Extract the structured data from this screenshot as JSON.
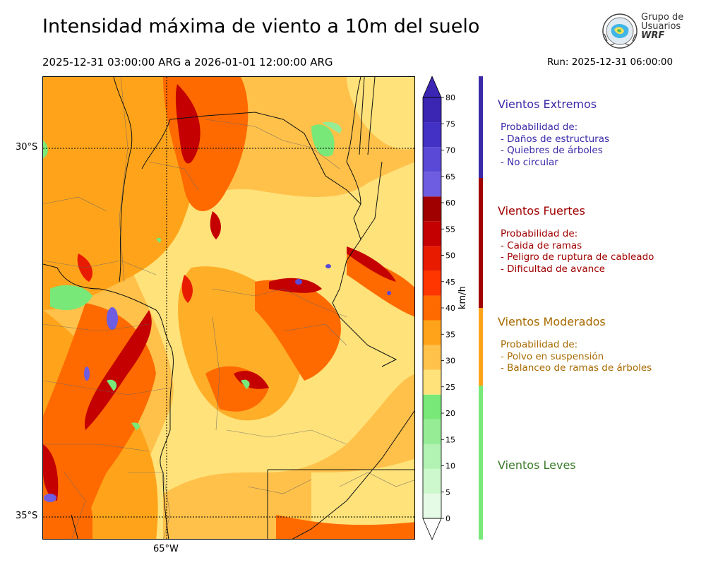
{
  "header": {
    "title": "Intensidad máxima de viento a 10m del suelo",
    "period": "2025-12-31 03:00:00 ARG  a  2026-01-01 12:00:00 ARG",
    "run": "Run: 2025-12-31 06:00:00"
  },
  "logo": {
    "line1": "Grupo de",
    "line2": "Usuarios",
    "line3": "WRF"
  },
  "map": {
    "lat_labels": [
      "30°S",
      "35°S"
    ],
    "lon_labels": [
      "65°W"
    ]
  },
  "colorbar": {
    "unit": "km/h",
    "ticks": [
      "0",
      "5",
      "10",
      "15",
      "20",
      "25",
      "30",
      "35",
      "40",
      "45",
      "50",
      "55",
      "60",
      "65",
      "70",
      "75",
      "80"
    ],
    "colors": [
      "#e6fbe6",
      "#cdf7cd",
      "#b2f2b2",
      "#95ec95",
      "#78e878",
      "#ffe27a",
      "#ffc14a",
      "#ffa41a",
      "#ff6a00",
      "#ff3600",
      "#e81b00",
      "#c40000",
      "#a00000",
      "#6e5de0",
      "#5a49d6",
      "#4330c4",
      "#3b26b4"
    ],
    "extend_color": "#3b26b4"
  },
  "legend": {
    "extremos": {
      "title": "Vientos Extremos",
      "intro": "Probabilidad de:",
      "items": [
        "- Daños de estructuras",
        "- Quiebres de árboles",
        "- No circular"
      ],
      "color": "#3a2aa8"
    },
    "fuertes": {
      "title": "Vientos Fuertes",
      "intro": "Probabilidad de:",
      "items": [
        "- Caida de ramas",
        "- Peligro de ruptura de cableado",
        "- Dificultad de avance"
      ],
      "color": "#a00000"
    },
    "moderados": {
      "title": "Vientos Moderados",
      "intro": "Probabilidad de:",
      "items": [
        "- Polvo en suspensión",
        "- Balanceo de ramas de árboles"
      ],
      "color": "#a86a00",
      "bar_color": "#ffa41a"
    },
    "leves": {
      "title": "Vientos Leves",
      "color": "#3a7a2a",
      "bar_color": "#78e878"
    }
  }
}
